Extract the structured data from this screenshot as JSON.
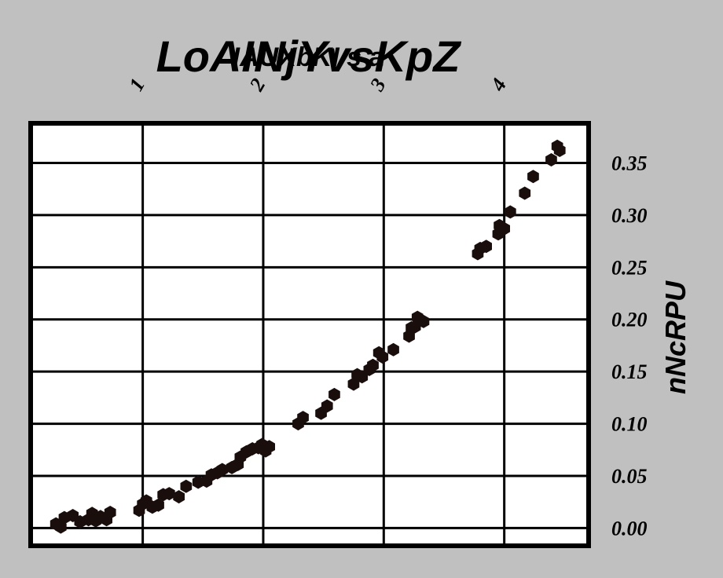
{
  "chart_data": {
    "type": "scatter",
    "title": "LoAINjYvsKpZ",
    "subtitle": "IAUXbKI s a",
    "xlabel": "",
    "ylabel": "nNcRPU",
    "xlim": [
      0.07,
      4.7
    ],
    "ylim": [
      -0.017,
      0.388
    ],
    "x_ticks": [
      1,
      2,
      3,
      4
    ],
    "x_tick_labels": [
      "1",
      "2",
      "3",
      "4"
    ],
    "y_ticks": [
      0.0,
      0.05,
      0.1,
      0.15,
      0.2,
      0.25,
      0.3,
      0.35
    ],
    "y_tick_labels": [
      "0.00",
      "0.05",
      "0.10",
      "0.15",
      "0.20",
      "0.25",
      "0.30",
      "0.35"
    ],
    "x_axis_position": "top",
    "y_axis_position": "right",
    "grid": true,
    "marker_color": "#1a0e0c",
    "background": "#c0c0c0",
    "plot_background": "#ffffff",
    "points": [
      {
        "x": 0.28,
        "y": 0.004
      },
      {
        "x": 0.32,
        "y": 0.001
      },
      {
        "x": 0.35,
        "y": 0.01
      },
      {
        "x": 0.42,
        "y": 0.012
      },
      {
        "x": 0.48,
        "y": 0.006
      },
      {
        "x": 0.55,
        "y": 0.008
      },
      {
        "x": 0.58,
        "y": 0.014
      },
      {
        "x": 0.61,
        "y": 0.007
      },
      {
        "x": 0.65,
        "y": 0.011
      },
      {
        "x": 0.7,
        "y": 0.008
      },
      {
        "x": 0.73,
        "y": 0.015
      },
      {
        "x": 0.97,
        "y": 0.017
      },
      {
        "x": 1.0,
        "y": 0.023
      },
      {
        "x": 1.03,
        "y": 0.026
      },
      {
        "x": 1.08,
        "y": 0.02
      },
      {
        "x": 1.13,
        "y": 0.022
      },
      {
        "x": 1.17,
        "y": 0.032
      },
      {
        "x": 1.22,
        "y": 0.033
      },
      {
        "x": 1.3,
        "y": 0.03
      },
      {
        "x": 1.36,
        "y": 0.04
      },
      {
        "x": 1.46,
        "y": 0.044
      },
      {
        "x": 1.53,
        "y": 0.045
      },
      {
        "x": 1.57,
        "y": 0.051
      },
      {
        "x": 1.62,
        "y": 0.053
      },
      {
        "x": 1.66,
        "y": 0.056
      },
      {
        "x": 1.74,
        "y": 0.058
      },
      {
        "x": 1.79,
        "y": 0.061
      },
      {
        "x": 1.81,
        "y": 0.068
      },
      {
        "x": 1.86,
        "y": 0.073
      },
      {
        "x": 1.91,
        "y": 0.076
      },
      {
        "x": 1.96,
        "y": 0.077
      },
      {
        "x": 1.99,
        "y": 0.08
      },
      {
        "x": 2.02,
        "y": 0.074
      },
      {
        "x": 2.05,
        "y": 0.078
      },
      {
        "x": 2.29,
        "y": 0.1
      },
      {
        "x": 2.33,
        "y": 0.106
      },
      {
        "x": 2.48,
        "y": 0.11
      },
      {
        "x": 2.53,
        "y": 0.117
      },
      {
        "x": 2.59,
        "y": 0.128
      },
      {
        "x": 2.75,
        "y": 0.138
      },
      {
        "x": 2.78,
        "y": 0.147
      },
      {
        "x": 2.82,
        "y": 0.145
      },
      {
        "x": 2.88,
        "y": 0.152
      },
      {
        "x": 2.91,
        "y": 0.156
      },
      {
        "x": 2.96,
        "y": 0.168
      },
      {
        "x": 2.99,
        "y": 0.164
      },
      {
        "x": 3.08,
        "y": 0.171
      },
      {
        "x": 3.21,
        "y": 0.184
      },
      {
        "x": 3.23,
        "y": 0.192
      },
      {
        "x": 3.26,
        "y": 0.193
      },
      {
        "x": 3.28,
        "y": 0.202
      },
      {
        "x": 3.33,
        "y": 0.198
      },
      {
        "x": 3.78,
        "y": 0.263
      },
      {
        "x": 3.8,
        "y": 0.268
      },
      {
        "x": 3.85,
        "y": 0.27
      },
      {
        "x": 3.95,
        "y": 0.282
      },
      {
        "x": 3.96,
        "y": 0.29
      },
      {
        "x": 4.0,
        "y": 0.287
      },
      {
        "x": 4.05,
        "y": 0.303
      },
      {
        "x": 4.17,
        "y": 0.321
      },
      {
        "x": 4.24,
        "y": 0.337
      },
      {
        "x": 4.39,
        "y": 0.353
      },
      {
        "x": 4.44,
        "y": 0.366
      },
      {
        "x": 4.46,
        "y": 0.362
      }
    ]
  }
}
